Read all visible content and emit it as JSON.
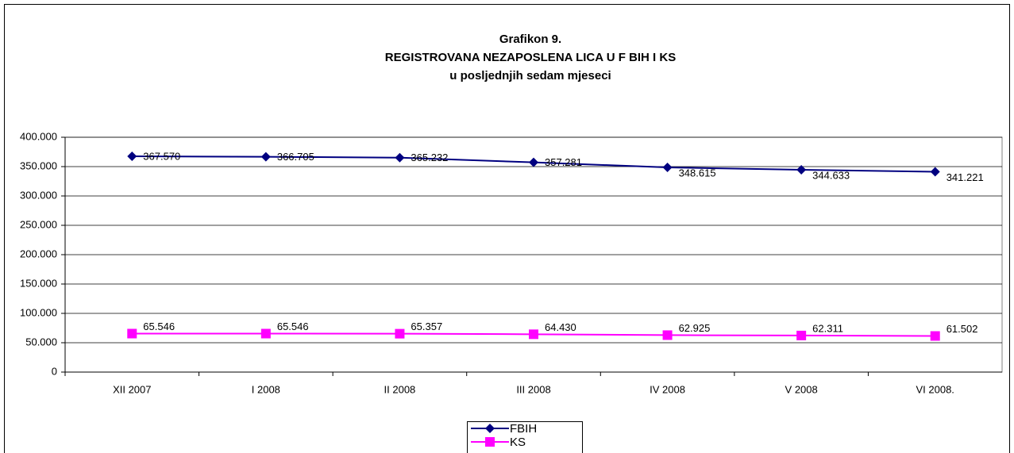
{
  "chart_data": {
    "type": "line",
    "title_lines": [
      "Grafikon 9.",
      "REGISTROVANA NEZAPOSLENA LICA U F BIH I KS",
      "u posljednjih sedam mjeseci"
    ],
    "categories": [
      "XII 2007",
      "I 2008",
      "II 2008",
      "III 2008",
      "IV 2008",
      "V 2008",
      "VI 2008."
    ],
    "series": [
      {
        "name": "FBIH",
        "color": "#000080",
        "marker": "diamond",
        "values": [
          367570,
          366705,
          365232,
          357281,
          348615,
          344633,
          341221
        ],
        "value_labels": [
          "367.570",
          "366.705",
          "365.232",
          "357.281",
          "348.615",
          "344.633",
          "341.221"
        ]
      },
      {
        "name": "KS",
        "color": "#ff00ff",
        "marker": "square",
        "values": [
          65546,
          65546,
          65357,
          64430,
          62925,
          62311,
          61502
        ],
        "value_labels": [
          "65.546",
          "65.546",
          "65.357",
          "64.430",
          "62.925",
          "62.311",
          "61.502"
        ]
      }
    ],
    "ylim": [
      0,
      400000
    ],
    "yticks": [
      0,
      {
        "value": 50000,
        "label": "50.000"
      },
      {
        "value": 100000,
        "label": "100.000"
      },
      {
        "value": 150000,
        "label": "150.000"
      },
      {
        "value": 200000,
        "label": "200.000"
      },
      {
        "value": 250000,
        "label": "250.000"
      },
      {
        "value": 300000,
        "label": "300.000"
      },
      {
        "value": 350000,
        "label": "350.000"
      },
      {
        "value": 400000,
        "label": "400.000"
      }
    ],
    "grid": true,
    "legend": "bottom"
  }
}
